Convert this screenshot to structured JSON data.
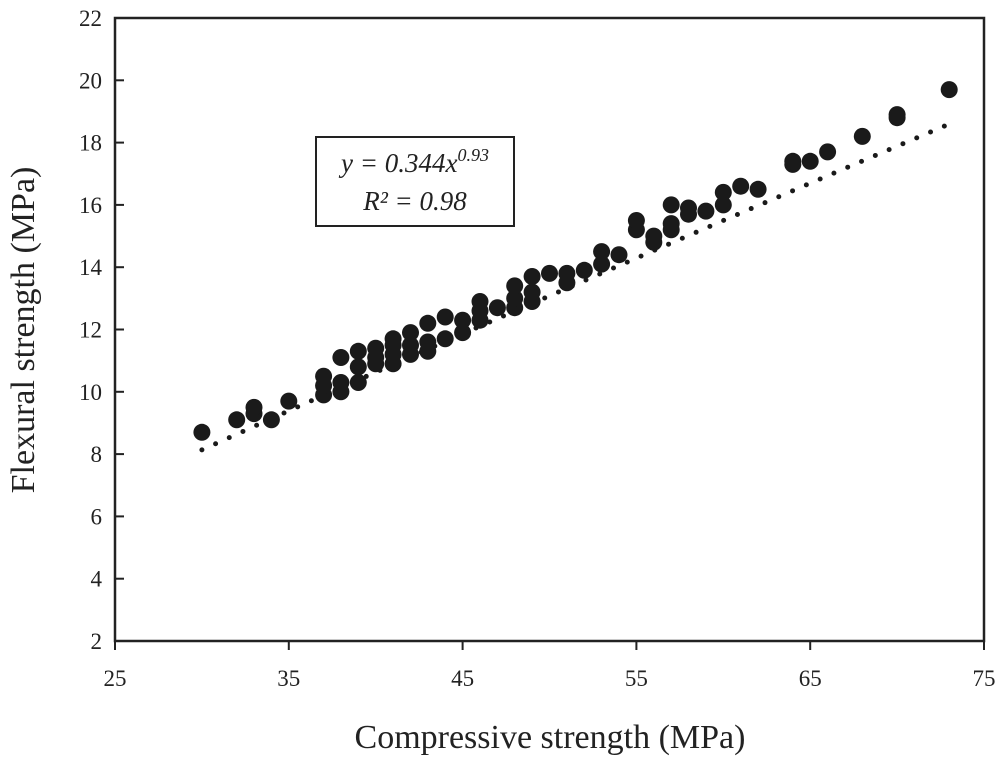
{
  "chart_data": {
    "type": "scatter",
    "xlabel": "Compressive strength (MPa)",
    "ylabel": "Flexural strength (MPa)",
    "xlim": [
      25,
      75
    ],
    "ylim": [
      2,
      22
    ],
    "xticks": [
      "25",
      "35",
      "45",
      "55",
      "65",
      "75"
    ],
    "yticks": [
      "2",
      "4",
      "6",
      "8",
      "10",
      "12",
      "14",
      "16",
      "18",
      "20",
      "22"
    ],
    "grid": false,
    "fit": {
      "a": 0.344,
      "b": 0.93,
      "equation_prefix": "y = 0.344x",
      "equation_exponent": "0.93",
      "r2_text": "R² = 0.98"
    },
    "colors": {
      "points": "#1a1a1a",
      "axis": "#222222"
    },
    "points": [
      [
        30,
        8.7
      ],
      [
        32,
        9.1
      ],
      [
        33,
        9.3
      ],
      [
        33,
        9.5
      ],
      [
        34,
        9.1
      ],
      [
        35,
        9.7
      ],
      [
        37,
        9.9
      ],
      [
        37,
        10.2
      ],
      [
        37,
        10.5
      ],
      [
        38,
        10.0
      ],
      [
        38,
        10.3
      ],
      [
        38,
        11.1
      ],
      [
        39,
        10.3
      ],
      [
        39,
        10.8
      ],
      [
        39,
        11.3
      ],
      [
        40,
        10.9
      ],
      [
        40,
        11.1
      ],
      [
        40,
        11.4
      ],
      [
        41,
        10.9
      ],
      [
        41,
        11.2
      ],
      [
        41,
        11.5
      ],
      [
        41,
        11.7
      ],
      [
        42,
        11.2
      ],
      [
        42,
        11.5
      ],
      [
        42,
        11.9
      ],
      [
        43,
        11.3
      ],
      [
        43,
        11.6
      ],
      [
        43,
        12.2
      ],
      [
        44,
        11.7
      ],
      [
        44,
        12.4
      ],
      [
        45,
        11.9
      ],
      [
        45,
        12.3
      ],
      [
        46,
        12.3
      ],
      [
        46,
        12.6
      ],
      [
        46,
        12.9
      ],
      [
        47,
        12.7
      ],
      [
        48,
        12.7
      ],
      [
        48,
        13.0
      ],
      [
        48,
        13.4
      ],
      [
        49,
        12.9
      ],
      [
        49,
        13.2
      ],
      [
        49,
        13.7
      ],
      [
        50,
        13.8
      ],
      [
        51,
        13.5
      ],
      [
        51,
        13.8
      ],
      [
        52,
        13.9
      ],
      [
        53,
        14.1
      ],
      [
        53,
        14.5
      ],
      [
        54,
        14.4
      ],
      [
        55,
        15.2
      ],
      [
        55,
        15.5
      ],
      [
        56,
        14.8
      ],
      [
        56,
        15.0
      ],
      [
        57,
        15.2
      ],
      [
        57,
        15.4
      ],
      [
        57,
        16.0
      ],
      [
        58,
        15.7
      ],
      [
        58,
        15.9
      ],
      [
        59,
        15.8
      ],
      [
        60,
        16.0
      ],
      [
        60,
        16.4
      ],
      [
        61,
        16.6
      ],
      [
        62,
        16.5
      ],
      [
        64,
        17.3
      ],
      [
        64,
        17.4
      ],
      [
        65,
        17.4
      ],
      [
        66,
        17.7
      ],
      [
        68,
        18.2
      ],
      [
        70,
        18.8
      ],
      [
        70,
        18.9
      ],
      [
        73,
        19.7
      ]
    ]
  }
}
